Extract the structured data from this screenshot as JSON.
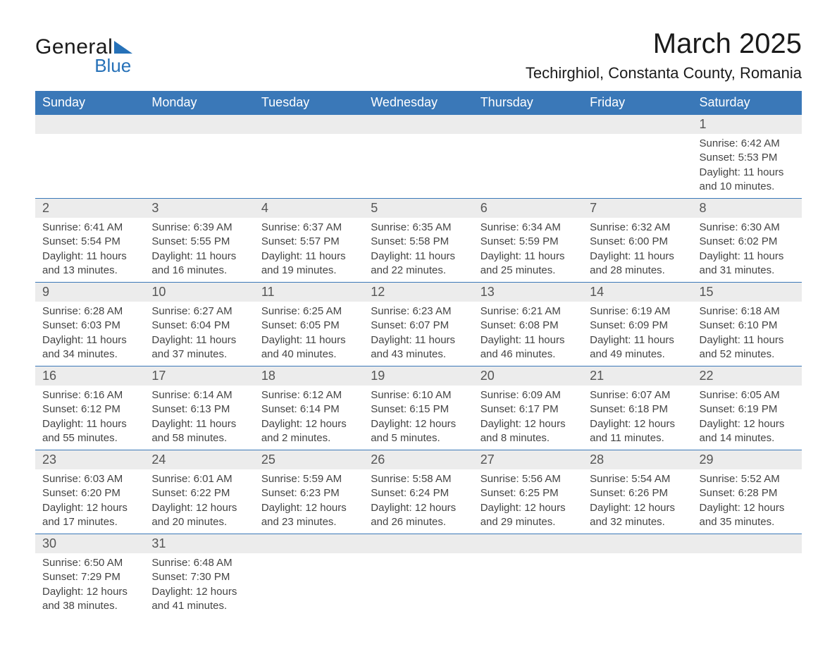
{
  "brand": {
    "word1": "General",
    "word2": "Blue"
  },
  "title": "March 2025",
  "location": "Techirghiol, Constanta County, Romania",
  "colors": {
    "header_bg": "#3a78b8",
    "header_text": "#ffffff",
    "stripe_bg": "#ececec",
    "border": "#3a78b8",
    "text": "#444444",
    "accent": "#2671b8"
  },
  "weekdays": [
    "Sunday",
    "Monday",
    "Tuesday",
    "Wednesday",
    "Thursday",
    "Friday",
    "Saturday"
  ],
  "weeks": [
    [
      null,
      null,
      null,
      null,
      null,
      null,
      {
        "n": "1",
        "sr": "Sunrise: 6:42 AM",
        "ss": "Sunset: 5:53 PM",
        "dl": "Daylight: 11 hours and 10 minutes."
      }
    ],
    [
      {
        "n": "2",
        "sr": "Sunrise: 6:41 AM",
        "ss": "Sunset: 5:54 PM",
        "dl": "Daylight: 11 hours and 13 minutes."
      },
      {
        "n": "3",
        "sr": "Sunrise: 6:39 AM",
        "ss": "Sunset: 5:55 PM",
        "dl": "Daylight: 11 hours and 16 minutes."
      },
      {
        "n": "4",
        "sr": "Sunrise: 6:37 AM",
        "ss": "Sunset: 5:57 PM",
        "dl": "Daylight: 11 hours and 19 minutes."
      },
      {
        "n": "5",
        "sr": "Sunrise: 6:35 AM",
        "ss": "Sunset: 5:58 PM",
        "dl": "Daylight: 11 hours and 22 minutes."
      },
      {
        "n": "6",
        "sr": "Sunrise: 6:34 AM",
        "ss": "Sunset: 5:59 PM",
        "dl": "Daylight: 11 hours and 25 minutes."
      },
      {
        "n": "7",
        "sr": "Sunrise: 6:32 AM",
        "ss": "Sunset: 6:00 PM",
        "dl": "Daylight: 11 hours and 28 minutes."
      },
      {
        "n": "8",
        "sr": "Sunrise: 6:30 AM",
        "ss": "Sunset: 6:02 PM",
        "dl": "Daylight: 11 hours and 31 minutes."
      }
    ],
    [
      {
        "n": "9",
        "sr": "Sunrise: 6:28 AM",
        "ss": "Sunset: 6:03 PM",
        "dl": "Daylight: 11 hours and 34 minutes."
      },
      {
        "n": "10",
        "sr": "Sunrise: 6:27 AM",
        "ss": "Sunset: 6:04 PM",
        "dl": "Daylight: 11 hours and 37 minutes."
      },
      {
        "n": "11",
        "sr": "Sunrise: 6:25 AM",
        "ss": "Sunset: 6:05 PM",
        "dl": "Daylight: 11 hours and 40 minutes."
      },
      {
        "n": "12",
        "sr": "Sunrise: 6:23 AM",
        "ss": "Sunset: 6:07 PM",
        "dl": "Daylight: 11 hours and 43 minutes."
      },
      {
        "n": "13",
        "sr": "Sunrise: 6:21 AM",
        "ss": "Sunset: 6:08 PM",
        "dl": "Daylight: 11 hours and 46 minutes."
      },
      {
        "n": "14",
        "sr": "Sunrise: 6:19 AM",
        "ss": "Sunset: 6:09 PM",
        "dl": "Daylight: 11 hours and 49 minutes."
      },
      {
        "n": "15",
        "sr": "Sunrise: 6:18 AM",
        "ss": "Sunset: 6:10 PM",
        "dl": "Daylight: 11 hours and 52 minutes."
      }
    ],
    [
      {
        "n": "16",
        "sr": "Sunrise: 6:16 AM",
        "ss": "Sunset: 6:12 PM",
        "dl": "Daylight: 11 hours and 55 minutes."
      },
      {
        "n": "17",
        "sr": "Sunrise: 6:14 AM",
        "ss": "Sunset: 6:13 PM",
        "dl": "Daylight: 11 hours and 58 minutes."
      },
      {
        "n": "18",
        "sr": "Sunrise: 6:12 AM",
        "ss": "Sunset: 6:14 PM",
        "dl": "Daylight: 12 hours and 2 minutes."
      },
      {
        "n": "19",
        "sr": "Sunrise: 6:10 AM",
        "ss": "Sunset: 6:15 PM",
        "dl": "Daylight: 12 hours and 5 minutes."
      },
      {
        "n": "20",
        "sr": "Sunrise: 6:09 AM",
        "ss": "Sunset: 6:17 PM",
        "dl": "Daylight: 12 hours and 8 minutes."
      },
      {
        "n": "21",
        "sr": "Sunrise: 6:07 AM",
        "ss": "Sunset: 6:18 PM",
        "dl": "Daylight: 12 hours and 11 minutes."
      },
      {
        "n": "22",
        "sr": "Sunrise: 6:05 AM",
        "ss": "Sunset: 6:19 PM",
        "dl": "Daylight: 12 hours and 14 minutes."
      }
    ],
    [
      {
        "n": "23",
        "sr": "Sunrise: 6:03 AM",
        "ss": "Sunset: 6:20 PM",
        "dl": "Daylight: 12 hours and 17 minutes."
      },
      {
        "n": "24",
        "sr": "Sunrise: 6:01 AM",
        "ss": "Sunset: 6:22 PM",
        "dl": "Daylight: 12 hours and 20 minutes."
      },
      {
        "n": "25",
        "sr": "Sunrise: 5:59 AM",
        "ss": "Sunset: 6:23 PM",
        "dl": "Daylight: 12 hours and 23 minutes."
      },
      {
        "n": "26",
        "sr": "Sunrise: 5:58 AM",
        "ss": "Sunset: 6:24 PM",
        "dl": "Daylight: 12 hours and 26 minutes."
      },
      {
        "n": "27",
        "sr": "Sunrise: 5:56 AM",
        "ss": "Sunset: 6:25 PM",
        "dl": "Daylight: 12 hours and 29 minutes."
      },
      {
        "n": "28",
        "sr": "Sunrise: 5:54 AM",
        "ss": "Sunset: 6:26 PM",
        "dl": "Daylight: 12 hours and 32 minutes."
      },
      {
        "n": "29",
        "sr": "Sunrise: 5:52 AM",
        "ss": "Sunset: 6:28 PM",
        "dl": "Daylight: 12 hours and 35 minutes."
      }
    ],
    [
      {
        "n": "30",
        "sr": "Sunrise: 6:50 AM",
        "ss": "Sunset: 7:29 PM",
        "dl": "Daylight: 12 hours and 38 minutes."
      },
      {
        "n": "31",
        "sr": "Sunrise: 6:48 AM",
        "ss": "Sunset: 7:30 PM",
        "dl": "Daylight: 12 hours and 41 minutes."
      },
      null,
      null,
      null,
      null,
      null
    ]
  ]
}
